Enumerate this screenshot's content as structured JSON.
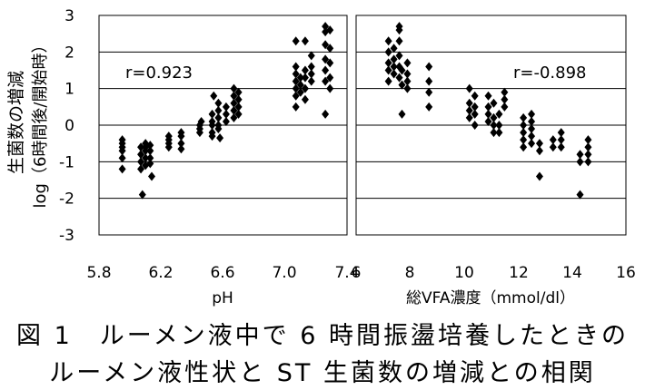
{
  "ylabel_line1": "生菌数の増減",
  "ylabel_line2": "log（6時間後/開始時）",
  "caption_line1": "図 1　ルーメン液中で 6 時間振盪培養したときの",
  "caption_line2": "ルーメン液性状と ST 生菌数の増減との相関",
  "colors": {
    "marker": "#000000",
    "grid": "#000000",
    "background": "#ffffff"
  },
  "chart_data": [
    {
      "type": "scatter",
      "title": "",
      "xlabel": "pH",
      "ylabel": "生菌数の増減 log（6時間後/開始時）",
      "xlim": [
        5.8,
        7.4
      ],
      "ylim": [
        -3,
        3
      ],
      "x_ticks": [
        "5.8",
        "6.2",
        "6.6",
        "7.0",
        "7.4"
      ],
      "y_ticks": [
        "3",
        "2",
        "1",
        "0",
        "-1",
        "-2",
        "-3"
      ],
      "grid": "horizontal",
      "annotation": "r=0.923",
      "series": [
        {
          "marker": "diamond",
          "points": [
            [
              5.95,
              -0.4
            ],
            [
              5.95,
              -0.5
            ],
            [
              5.95,
              -0.6
            ],
            [
              5.95,
              -0.7
            ],
            [
              5.95,
              -0.9
            ],
            [
              5.95,
              -1.2
            ],
            [
              6.07,
              -0.6
            ],
            [
              6.07,
              -0.8
            ],
            [
              6.07,
              -1.0
            ],
            [
              6.07,
              -1.2
            ],
            [
              6.08,
              -1.9
            ],
            [
              6.1,
              -0.5
            ],
            [
              6.1,
              -0.6
            ],
            [
              6.1,
              -0.7
            ],
            [
              6.1,
              -0.9
            ],
            [
              6.1,
              -1.1
            ],
            [
              6.13,
              -0.55
            ],
            [
              6.13,
              -0.7
            ],
            [
              6.13,
              -0.9
            ],
            [
              6.13,
              -1.05
            ],
            [
              6.14,
              -1.4
            ],
            [
              6.25,
              -0.3
            ],
            [
              6.25,
              -0.4
            ],
            [
              6.25,
              -0.5
            ],
            [
              6.25,
              -0.6
            ],
            [
              6.33,
              -0.2
            ],
            [
              6.33,
              -0.3
            ],
            [
              6.33,
              -0.5
            ],
            [
              6.33,
              -0.65
            ],
            [
              6.45,
              0.0
            ],
            [
              6.45,
              -0.1
            ],
            [
              6.45,
              -0.2
            ],
            [
              6.46,
              0.1
            ],
            [
              6.53,
              0.3
            ],
            [
              6.53,
              0.1
            ],
            [
              6.53,
              0.0
            ],
            [
              6.53,
              -0.2
            ],
            [
              6.53,
              -0.3
            ],
            [
              6.54,
              0.8
            ],
            [
              6.57,
              0.6
            ],
            [
              6.57,
              0.4
            ],
            [
              6.57,
              0.2
            ],
            [
              6.57,
              0.0
            ],
            [
              6.57,
              -0.1
            ],
            [
              6.58,
              -0.35
            ],
            [
              6.62,
              0.5
            ],
            [
              6.62,
              0.3
            ],
            [
              6.62,
              0.1
            ],
            [
              6.67,
              1.0
            ],
            [
              6.67,
              0.8
            ],
            [
              6.67,
              0.6
            ],
            [
              6.67,
              0.4
            ],
            [
              6.67,
              0.2
            ],
            [
              6.7,
              0.9
            ],
            [
              6.7,
              0.7
            ],
            [
              6.7,
              0.5
            ],
            [
              6.7,
              0.3
            ],
            [
              7.07,
              2.3
            ],
            [
              7.07,
              1.6
            ],
            [
              7.07,
              1.4
            ],
            [
              7.07,
              1.2
            ],
            [
              7.07,
              1.0
            ],
            [
              7.07,
              0.8
            ],
            [
              7.07,
              0.5
            ],
            [
              7.1,
              1.3
            ],
            [
              7.1,
              1.1
            ],
            [
              7.1,
              0.9
            ],
            [
              7.13,
              2.3
            ],
            [
              7.13,
              1.5
            ],
            [
              7.13,
              1.3
            ],
            [
              7.13,
              1.0
            ],
            [
              7.13,
              0.7
            ],
            [
              7.17,
              1.9
            ],
            [
              7.17,
              1.6
            ],
            [
              7.17,
              1.4
            ],
            [
              7.17,
              1.2
            ],
            [
              7.26,
              2.7
            ],
            [
              7.26,
              2.55
            ],
            [
              7.26,
              2.2
            ],
            [
              7.26,
              1.8
            ],
            [
              7.26,
              1.5
            ],
            [
              7.26,
              1.2
            ],
            [
              7.26,
              0.3
            ],
            [
              7.29,
              2.6
            ],
            [
              7.29,
              2.1
            ],
            [
              7.29,
              1.7
            ],
            [
              7.29,
              1.3
            ],
            [
              7.29,
              1.0
            ]
          ]
        }
      ]
    },
    {
      "type": "scatter",
      "title": "",
      "xlabel": "総VFA濃度（mmol/dl）",
      "ylabel": "生菌数の増減 log（6時間後/開始時）",
      "xlim": [
        6,
        16
      ],
      "ylim": [
        -3,
        3
      ],
      "x_ticks": [
        "6",
        "8",
        "10",
        "12",
        "14",
        "16"
      ],
      "grid": "horizontal",
      "annotation": "r=-0.898",
      "series": [
        {
          "marker": "diamond",
          "points": [
            [
              7.2,
              2.3
            ],
            [
              7.2,
              2.0
            ],
            [
              7.2,
              1.7
            ],
            [
              7.2,
              1.5
            ],
            [
              7.2,
              1.2
            ],
            [
              7.4,
              2.1
            ],
            [
              7.4,
              1.8
            ],
            [
              7.4,
              1.6
            ],
            [
              7.4,
              1.4
            ],
            [
              7.6,
              2.7
            ],
            [
              7.6,
              2.6
            ],
            [
              7.6,
              2.3
            ],
            [
              7.6,
              1.9
            ],
            [
              7.6,
              1.6
            ],
            [
              7.6,
              1.3
            ],
            [
              7.7,
              1.5
            ],
            [
              7.7,
              1.1
            ],
            [
              7.7,
              0.3
            ],
            [
              7.9,
              1.7
            ],
            [
              7.9,
              1.4
            ],
            [
              7.9,
              1.2
            ],
            [
              7.9,
              1.0
            ],
            [
              8.7,
              1.6
            ],
            [
              8.7,
              1.2
            ],
            [
              8.7,
              0.9
            ],
            [
              8.7,
              0.5
            ],
            [
              10.2,
              1.0
            ],
            [
              10.2,
              0.6
            ],
            [
              10.2,
              0.4
            ],
            [
              10.2,
              0.2
            ],
            [
              10.4,
              0.8
            ],
            [
              10.4,
              0.5
            ],
            [
              10.4,
              0.3
            ],
            [
              10.4,
              0.0
            ],
            [
              10.9,
              0.8
            ],
            [
              10.9,
              0.5
            ],
            [
              10.9,
              0.3
            ],
            [
              10.9,
              0.1
            ],
            [
              11.1,
              0.6
            ],
            [
              11.1,
              0.2
            ],
            [
              11.1,
              0.0
            ],
            [
              11.1,
              -0.2
            ],
            [
              11.3,
              0.3
            ],
            [
              11.3,
              0.0
            ],
            [
              11.3,
              -0.2
            ],
            [
              11.5,
              0.9
            ],
            [
              11.5,
              0.7
            ],
            [
              11.5,
              0.5
            ],
            [
              12.2,
              0.2
            ],
            [
              12.2,
              0.0
            ],
            [
              12.2,
              -0.2
            ],
            [
              12.2,
              -0.4
            ],
            [
              12.2,
              -0.6
            ],
            [
              12.5,
              0.3
            ],
            [
              12.5,
              0.1
            ],
            [
              12.5,
              -0.1
            ],
            [
              12.5,
              -0.3
            ],
            [
              12.5,
              -0.5
            ],
            [
              12.8,
              -0.5
            ],
            [
              12.8,
              -0.7
            ],
            [
              12.8,
              -1.4
            ],
            [
              13.3,
              -0.4
            ],
            [
              13.3,
              -0.6
            ],
            [
              13.6,
              -0.2
            ],
            [
              13.6,
              -0.4
            ],
            [
              13.6,
              -0.6
            ],
            [
              14.3,
              -0.8
            ],
            [
              14.3,
              -1.0
            ],
            [
              14.3,
              -1.9
            ],
            [
              14.6,
              -0.4
            ],
            [
              14.6,
              -0.6
            ],
            [
              14.6,
              -0.8
            ],
            [
              14.6,
              -1.0
            ]
          ]
        }
      ]
    }
  ]
}
